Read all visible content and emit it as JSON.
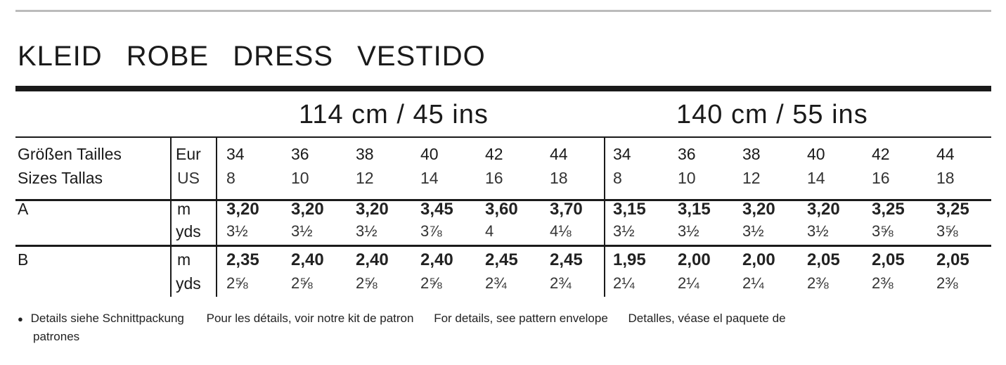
{
  "title": [
    "KLEID",
    "ROBE",
    "DRESS",
    "VESTIDO"
  ],
  "widths": [
    "114 cm / 45 ins",
    "140 cm / 55 ins"
  ],
  "sizes_label": [
    "Größen Tailles",
    "Sizes Tallas"
  ],
  "unit_labels": {
    "eur": "Eur",
    "us": "US",
    "m": "m",
    "yds": "yds"
  },
  "eur_sizes": [
    "34",
    "36",
    "38",
    "40",
    "42",
    "44",
    "34",
    "36",
    "38",
    "40",
    "42",
    "44"
  ],
  "us_sizes": [
    "8",
    "10",
    "12",
    "14",
    "16",
    "18",
    "8",
    "10",
    "12",
    "14",
    "16",
    "18"
  ],
  "rows": [
    {
      "label": "A",
      "m": [
        "3,20",
        "3,20",
        "3,20",
        "3,45",
        "3,60",
        "3,70",
        "3,15",
        "3,15",
        "3,20",
        "3,20",
        "3,25",
        "3,25"
      ],
      "yds": [
        "3½",
        "3½",
        "3½",
        "3⅞",
        "4",
        "4⅛",
        "3½",
        "3½",
        "3½",
        "3½",
        "3⅝",
        "3⅝"
      ]
    },
    {
      "label": "B",
      "m": [
        "2,35",
        "2,40",
        "2,40",
        "2,40",
        "2,45",
        "2,45",
        "1,95",
        "2,00",
        "2,00",
        "2,05",
        "2,05",
        "2,05"
      ],
      "yds": [
        "2⅝",
        "2⅝",
        "2⅝",
        "2⅝",
        "2¾",
        "2¾",
        "2¼",
        "2¼",
        "2¼",
        "2⅜",
        "2⅜",
        "2⅜"
      ]
    }
  ],
  "footnote": {
    "bullet-icon": "●",
    "de": "Details siehe Schnittpackung",
    "fr": "Pour les détails, voir notre kit de patron",
    "en": "For details, see pattern envelope",
    "es": "Detalles, véase el paquete de",
    "es_cont": "patrones"
  }
}
